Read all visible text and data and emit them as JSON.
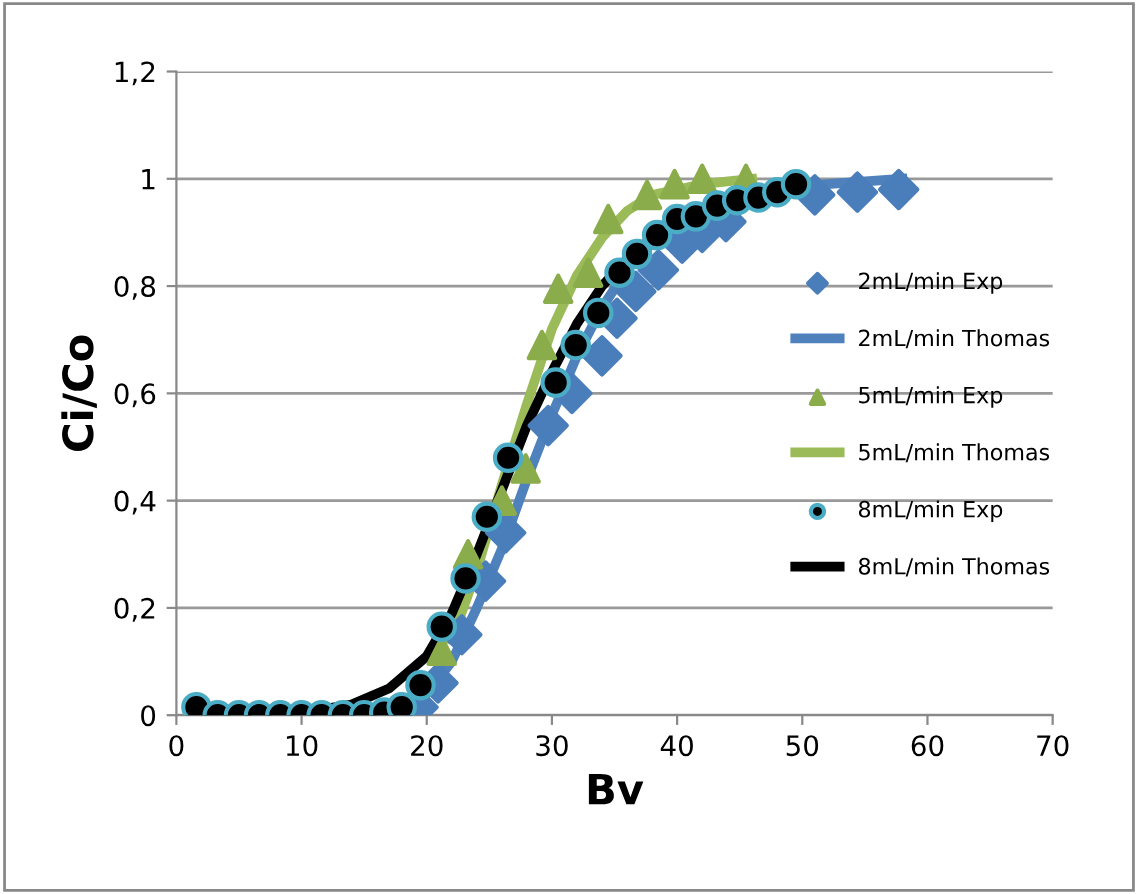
{
  "chart_data": {
    "type": "scatter",
    "xlabel": "Bv",
    "ylabel": "Ci/Co",
    "xlim": [
      0,
      70
    ],
    "ylim": [
      0,
      1.2
    ],
    "xticks": [
      0,
      10,
      20,
      30,
      40,
      50,
      60,
      70
    ],
    "yticks": [
      0,
      {
        "value": 0.2,
        "label": "0,2"
      },
      {
        "value": 0.4,
        "label": "0,4"
      },
      {
        "value": 0.6,
        "label": "0,6"
      },
      {
        "value": 0.8,
        "label": "0,8"
      },
      1,
      {
        "value": 1.2,
        "label": "1,2"
      }
    ],
    "grid": "y",
    "legend": "right",
    "series": [
      {
        "name": "2mL/min Exp",
        "marker": "diamond",
        "color": "#4a7ebb",
        "x": [
          19.3,
          20.9,
          22.8,
          24.7,
          26.3,
          29.7,
          31.6,
          34,
          35.2,
          36.7,
          38.5,
          40.4,
          42,
          43.9,
          51,
          54.4,
          57.7
        ],
        "values": [
          0.015,
          0.06,
          0.15,
          0.25,
          0.34,
          0.54,
          0.6,
          0.67,
          0.74,
          0.79,
          0.83,
          0.88,
          0.9,
          0.92,
          0.97,
          0.975,
          0.98
        ]
      },
      {
        "name": "2mL/min Thomas",
        "type": "line",
        "marker": "none",
        "color": "#4f81bd",
        "x": [
          20,
          22,
          24,
          26,
          28,
          30,
          32,
          34,
          36,
          38,
          40,
          44,
          48,
          52,
          58
        ],
        "values": [
          0.04,
          0.1,
          0.2,
          0.31,
          0.44,
          0.56,
          0.67,
          0.76,
          0.83,
          0.88,
          0.92,
          0.96,
          0.98,
          0.99,
          1.0
        ]
      },
      {
        "name": "5mL/min Exp",
        "marker": "triangle",
        "color": "#8aac4b",
        "x": [
          21.2,
          23.3,
          26,
          27.9,
          29.2,
          30.5,
          32.9,
          34.5,
          37.6,
          39.8,
          42,
          45.5
        ],
        "values": [
          0.12,
          0.3,
          0.4,
          0.46,
          0.69,
          0.795,
          0.825,
          0.925,
          0.97,
          0.99,
          1.0,
          1.0
        ]
      },
      {
        "name": "5mL/min Thomas",
        "type": "line",
        "marker": "none",
        "color": "#9bbb59",
        "x": [
          22,
          24,
          26,
          28,
          30,
          32,
          34,
          36,
          38,
          42,
          46
        ],
        "values": [
          0.14,
          0.27,
          0.43,
          0.58,
          0.72,
          0.82,
          0.89,
          0.94,
          0.97,
          0.99,
          1.0
        ]
      },
      {
        "name": "8mL/min Exp",
        "marker": "circle",
        "color": "#000000",
        "x": [
          1.6,
          3.3,
          5,
          6.6,
          8.3,
          10,
          11.6,
          13.3,
          15,
          16.6,
          18,
          19.5,
          21.2,
          23.1,
          24.8,
          26.5,
          30.3,
          31.9,
          33.7,
          35.4,
          36.8,
          38.4,
          40,
          41.5,
          43.2,
          44.8,
          46.5,
          48,
          49.5
        ],
        "values": [
          0.015,
          0,
          0,
          0,
          0,
          0,
          0,
          0,
          0,
          0.005,
          0.015,
          0.056,
          0.165,
          0.255,
          0.37,
          0.48,
          0.62,
          0.69,
          0.75,
          0.825,
          0.86,
          0.895,
          0.925,
          0.93,
          0.95,
          0.96,
          0.965,
          0.975,
          0.99
        ]
      },
      {
        "name": "8mL/min Thomas",
        "type": "line",
        "marker": "none",
        "color": "#000000",
        "x": [
          1.6,
          10,
          14,
          17,
          20,
          22,
          24,
          26,
          28,
          30,
          32,
          34,
          36,
          38,
          40,
          44,
          48,
          50
        ],
        "values": [
          0,
          0.005,
          0.02,
          0.05,
          0.11,
          0.19,
          0.3,
          0.42,
          0.54,
          0.64,
          0.73,
          0.8,
          0.85,
          0.89,
          0.92,
          0.96,
          0.98,
          0.99
        ]
      }
    ]
  }
}
